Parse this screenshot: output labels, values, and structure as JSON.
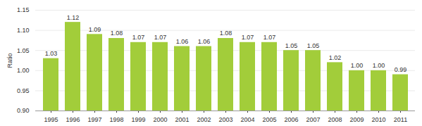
{
  "chart_data": {
    "type": "bar",
    "categories": [
      "1995",
      "1996",
      "1997",
      "1998",
      "1999",
      "2000",
      "2001",
      "2002",
      "2003",
      "2004",
      "2005",
      "2006",
      "2007",
      "2008",
      "2009",
      "2010",
      "2011"
    ],
    "values": [
      1.03,
      1.12,
      1.09,
      1.08,
      1.07,
      1.07,
      1.06,
      1.06,
      1.08,
      1.07,
      1.07,
      1.05,
      1.05,
      1.02,
      1.0,
      1.0,
      0.99
    ],
    "value_labels": [
      "1.03",
      "1.12",
      "1.09",
      "1.08",
      "1.07",
      "1.07",
      "1.06",
      "1.06",
      "1.08",
      "1.07",
      "1.07",
      "1.05",
      "1.05",
      "1.02",
      "1.00",
      "1.00",
      "0.99"
    ],
    "data_labels": true,
    "color": "#a2cd3a",
    "y_label": "Ratio",
    "ylim": [
      0.9,
      1.15
    ],
    "yticks": [
      {
        "value": 0.9,
        "label": "0.90"
      },
      0.95,
      {
        "value": 1.0,
        "label": "1.00"
      },
      1.05,
      {
        "value": 1.1,
        "label": "1.10"
      },
      1.15
    ],
    "grid": true
  }
}
